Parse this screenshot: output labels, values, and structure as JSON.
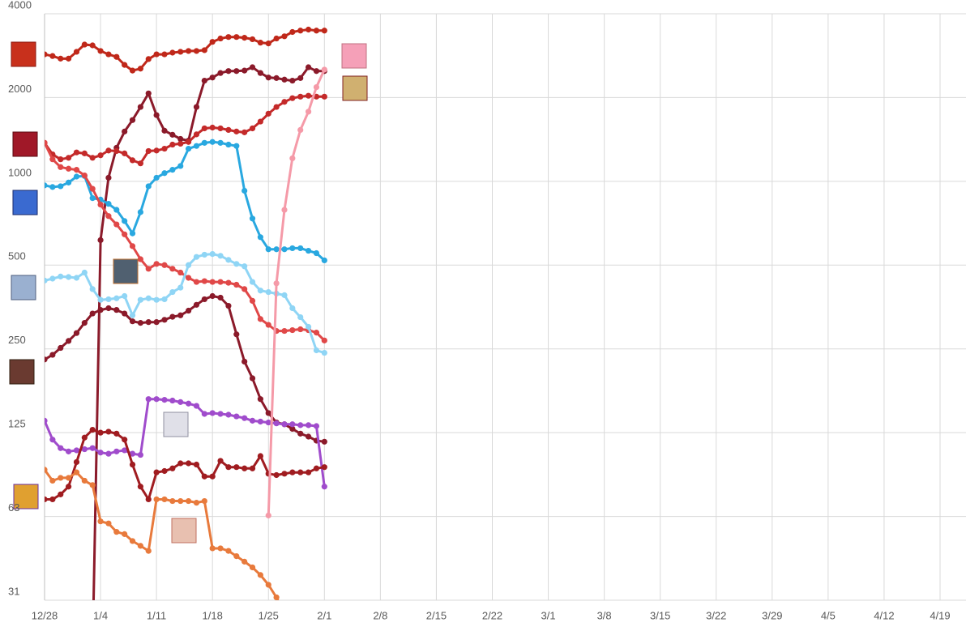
{
  "chart_data": {
    "type": "line",
    "log_scale": true,
    "grid": true,
    "xlim": [
      0,
      112
    ],
    "xticks": [
      {
        "value": 0,
        "label": "12/28"
      },
      {
        "value": 7,
        "label": "1/4"
      },
      {
        "value": 14,
        "label": "1/11"
      },
      {
        "value": 21,
        "label": "1/18"
      },
      {
        "value": 28,
        "label": "1/25"
      },
      {
        "value": 35,
        "label": "2/1"
      },
      {
        "value": 42,
        "label": "2/8"
      },
      {
        "value": 49,
        "label": "2/15"
      },
      {
        "value": 56,
        "label": "2/22"
      },
      {
        "value": 63,
        "label": "3/1"
      },
      {
        "value": 70,
        "label": "3/8"
      },
      {
        "value": 77,
        "label": "3/15"
      },
      {
        "value": 84,
        "label": "3/22"
      },
      {
        "value": 91,
        "label": "3/29"
      },
      {
        "value": 98,
        "label": "4/5"
      },
      {
        "value": 105,
        "label": "4/12"
      },
      {
        "value": 112,
        "label": "4/19"
      }
    ],
    "ylim": [
      31.25,
      4000
    ],
    "yticks": [
      {
        "value": 31.25,
        "label": "31"
      },
      {
        "value": 62.5,
        "label": "63"
      },
      125,
      250,
      500,
      1000,
      2000,
      4000
    ],
    "x": [
      0,
      1,
      2,
      3,
      4,
      5,
      6,
      7,
      8,
      9,
      10,
      11,
      12,
      13,
      14,
      15,
      16,
      17,
      18,
      19,
      20,
      21,
      22,
      23,
      24,
      25,
      26,
      27,
      28,
      29,
      30,
      31,
      32,
      33,
      34,
      35
    ],
    "series": [
      {
        "color": "#c0281a",
        "values": [
          2860,
          2820,
          2760,
          2760,
          2920,
          3100,
          3080,
          2940,
          2860,
          2800,
          2620,
          2500,
          2540,
          2750,
          2860,
          2860,
          2900,
          2920,
          2940,
          2940,
          2960,
          3170,
          3260,
          3300,
          3300,
          3280,
          3240,
          3150,
          3130,
          3260,
          3320,
          3440,
          3480,
          3510,
          3480,
          3480
        ]
      },
      {
        "color": "#8b1a2a",
        "values": [
          null,
          null,
          null,
          null,
          null,
          null,
          20,
          615,
          1030,
          1320,
          1510,
          1660,
          1850,
          2070,
          1730,
          1520,
          1470,
          1420,
          1400,
          1850,
          2300,
          2360,
          2450,
          2490,
          2490,
          2500,
          2570,
          2450,
          2360,
          2350,
          2320,
          2300,
          2350,
          2570,
          2490,
          2490
        ]
      },
      {
        "color": "#c42a2a",
        "values": [
          1375,
          1250,
          1200,
          1215,
          1270,
          1260,
          1215,
          1240,
          1290,
          1285,
          1260,
          1190,
          1160,
          1285,
          1290,
          1310,
          1355,
          1365,
          1385,
          1475,
          1550,
          1560,
          1550,
          1530,
          1510,
          1500,
          1550,
          1640,
          1750,
          1850,
          1930,
          1990,
          2015,
          2030,
          2015,
          2015
        ]
      },
      {
        "color": "#29a8e0",
        "values": [
          967,
          954,
          960,
          990,
          1040,
          1045,
          870,
          860,
          830,
          790,
          720,
          650,
          775,
          960,
          1030,
          1070,
          1100,
          1135,
          1310,
          1340,
          1375,
          1385,
          1375,
          1355,
          1340,
          925,
          735,
          630,
          570,
          570,
          570,
          575,
          575,
          563,
          552,
          520
        ]
      },
      {
        "color": "#e04848",
        "values": [
          1375,
          1200,
          1125,
          1110,
          1100,
          1050,
          940,
          825,
          750,
          700,
          645,
          585,
          525,
          485,
          505,
          500,
          485,
          470,
          450,
          435,
          438,
          435,
          435,
          432,
          425,
          410,
          372,
          320,
          305,
          290,
          290,
          292,
          294,
          292,
          286,
          268
        ]
      },
      {
        "color": "#8fd5f5",
        "values": [
          440,
          447,
          455,
          453,
          450,
          470,
          410,
          375,
          377,
          380,
          387,
          330,
          375,
          380,
          375,
          377,
          400,
          415,
          500,
          535,
          545,
          548,
          540,
          522,
          505,
          495,
          435,
          405,
          400,
          395,
          390,
          350,
          325,
          300,
          247,
          242
        ]
      },
      {
        "color": "#8b1a2a",
        "values": [
          229,
          238,
          252,
          267,
          285,
          310,
          335,
          345,
          350,
          345,
          335,
          314,
          310,
          312,
          312,
          318,
          326,
          330,
          343,
          360,
          377,
          387,
          382,
          357,
          282,
          225,
          196,
          165,
          147,
          136,
          134,
          129,
          124,
          121,
          117,
          116
        ]
      },
      {
        "color": "#a04ccc",
        "values": [
          138,
          118,
          110,
          107,
          108,
          109,
          110,
          106,
          105,
          107,
          108,
          105,
          104,
          165,
          165,
          164,
          163,
          161,
          159,
          156,
          146,
          147,
          146,
          145,
          143,
          141,
          138,
          137,
          136,
          135,
          134,
          134,
          133,
          133,
          132,
          80
        ]
      },
      {
        "color": "#a01c20",
        "values": [
          72,
          72,
          75,
          80,
          98,
          120,
          128,
          125,
          126,
          124,
          118,
          96,
          80,
          72,
          90,
          91,
          93,
          97,
          97,
          96,
          87,
          87,
          99,
          94,
          94,
          93,
          93,
          103,
          89,
          88,
          89,
          90,
          90,
          90,
          93,
          94
        ]
      },
      {
        "color": "#e87a3c",
        "values": [
          92,
          84,
          86,
          86,
          90,
          84,
          81,
          60,
          59,
          55,
          54,
          51,
          49,
          47,
          72,
          72,
          71,
          71,
          71,
          70,
          71,
          48,
          48,
          47,
          45,
          43,
          41,
          38.5,
          35.5,
          32,
          28,
          null,
          null,
          null,
          null,
          null
        ]
      },
      {
        "color": "#f59aa8",
        "values": [
          null,
          null,
          null,
          null,
          null,
          null,
          null,
          null,
          null,
          null,
          null,
          null,
          null,
          null,
          null,
          null,
          null,
          null,
          null,
          null,
          null,
          null,
          null,
          null,
          null,
          null,
          null,
          null,
          63,
          430,
          790,
          1210,
          1530,
          1780,
          2180,
          2520
        ]
      }
    ]
  }
}
